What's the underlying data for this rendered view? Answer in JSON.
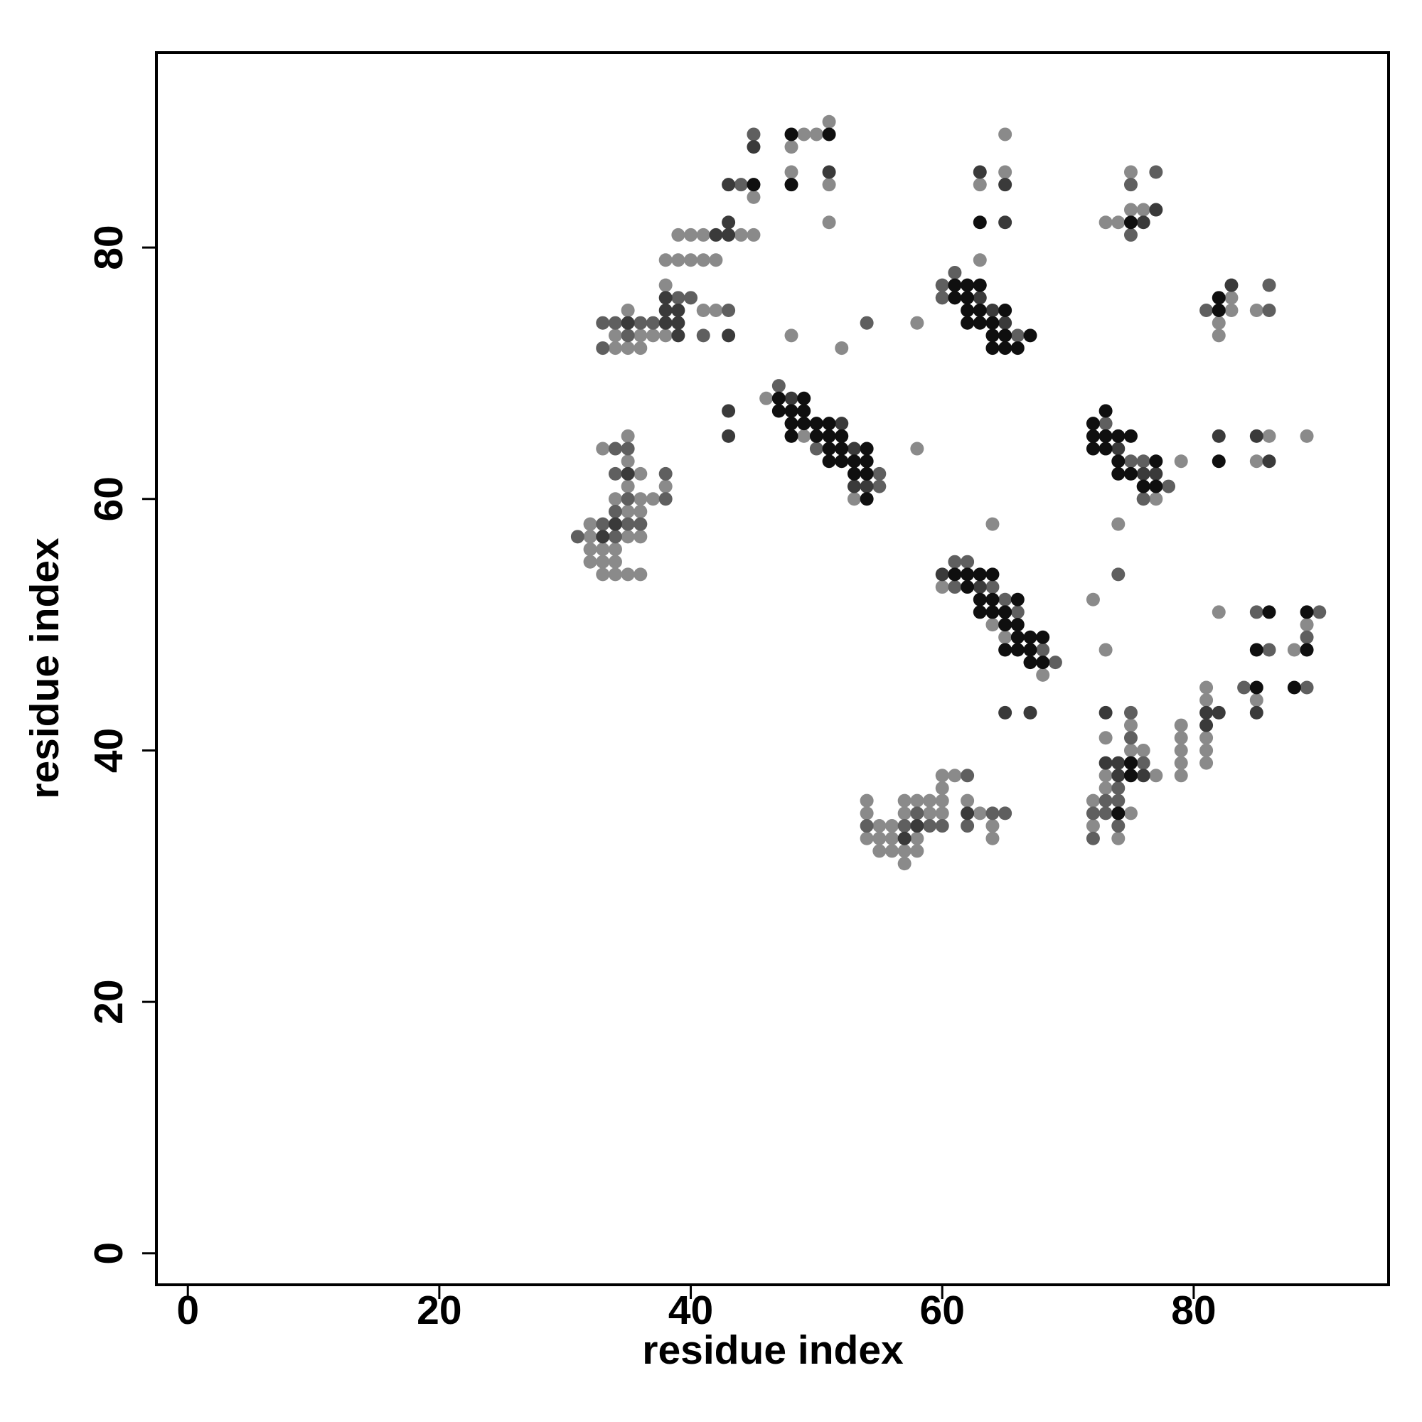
{
  "chart_data": {
    "type": "scatter",
    "x_label": "residue index",
    "y_label": "residue index",
    "xlim": [
      -2.5,
      95.5
    ],
    "ylim": [
      -2.5,
      95.5
    ],
    "xticks": [
      0,
      20,
      40,
      60,
      80
    ],
    "yticks": [
      0,
      20,
      40,
      60,
      80
    ],
    "grid": false,
    "series": [
      {
        "color": "#8a8a8a",
        "x": [
          35,
          33,
          35,
          36,
          35,
          34,
          36,
          35,
          36,
          32,
          32,
          35,
          36,
          32,
          33,
          34,
          32,
          33,
          34,
          33,
          34,
          35,
          36,
          37,
          38,
          35,
          41,
          42,
          34,
          36,
          37,
          38,
          34,
          35,
          36,
          38,
          38,
          39,
          40,
          41,
          42,
          39,
          40,
          41,
          44,
          45,
          45,
          49,
          50,
          51,
          48,
          48,
          51,
          51,
          48,
          52,
          58,
          58,
          46,
          49,
          53,
          63,
          65,
          65,
          63,
          60,
          64,
          65,
          68,
          64,
          54,
          54,
          54,
          55,
          55,
          55,
          56,
          56,
          56,
          57,
          57,
          57,
          57,
          58,
          58,
          58,
          59,
          59,
          60,
          60,
          60,
          60,
          61,
          62,
          63,
          64,
          64,
          72,
          72,
          73,
          73,
          73,
          74,
          75,
          75,
          75,
          76,
          77,
          79,
          79,
          79,
          79,
          79,
          81,
          81,
          81,
          81,
          81,
          85,
          88,
          89,
          82,
          72,
          73,
          74,
          77,
          79,
          85,
          86,
          89,
          82,
          82,
          83,
          83,
          85,
          75,
          75,
          76,
          73,
          74
        ],
        "values": [
          65,
          64,
          63,
          62,
          61,
          60,
          60,
          59,
          59,
          58,
          57,
          57,
          57,
          56,
          56,
          56,
          55,
          55,
          55,
          54,
          54,
          54,
          54,
          60,
          61,
          75,
          75,
          75,
          73,
          73,
          73,
          73,
          72,
          72,
          72,
          77,
          79,
          79,
          79,
          79,
          79,
          81,
          81,
          81,
          81,
          81,
          84,
          89,
          89,
          90,
          88,
          86,
          85,
          82,
          73,
          72,
          74,
          64,
          68,
          65,
          60,
          79,
          89,
          86,
          85,
          53,
          50,
          49,
          46,
          58,
          36,
          35,
          33,
          34,
          33,
          32,
          34,
          33,
          32,
          36,
          35,
          32,
          31,
          36,
          33,
          32,
          36,
          35,
          38,
          37,
          36,
          35,
          38,
          36,
          35,
          34,
          33,
          36,
          34,
          41,
          38,
          37,
          33,
          42,
          40,
          35,
          40,
          38,
          42,
          41,
          40,
          39,
          38,
          45,
          44,
          41,
          40,
          39,
          44,
          48,
          50,
          51,
          52,
          48,
          58,
          60,
          63,
          63,
          65,
          65,
          74,
          73,
          76,
          75,
          75,
          86,
          83,
          83,
          82,
          82
        ]
      },
      {
        "color": "#5f5f5f",
        "x": [
          34,
          35,
          34,
          35,
          34,
          33,
          35,
          36,
          31,
          34,
          38,
          38,
          43,
          33,
          34,
          36,
          37,
          35,
          41,
          33,
          39,
          40,
          44,
          45,
          54,
          47,
          50,
          55,
          55,
          60,
          60,
          61,
          66,
          61,
          61,
          62,
          64,
          65,
          66,
          68,
          69,
          74,
          54,
          57,
          58,
          59,
          60,
          62,
          62,
          64,
          65,
          72,
          72,
          73,
          73,
          74,
          74,
          74,
          75,
          75,
          76,
          84,
          85,
          86,
          89,
          89,
          90,
          73,
          75,
          76,
          76,
          78,
          81,
          86,
          86,
          77,
          75,
          75
        ],
        "values": [
          64,
          64,
          62,
          60,
          59,
          58,
          58,
          58,
          57,
          57,
          60,
          62,
          75,
          74,
          74,
          74,
          74,
          73,
          73,
          72,
          76,
          76,
          85,
          89,
          74,
          69,
          64,
          62,
          61,
          77,
          76,
          78,
          73,
          55,
          53,
          55,
          53,
          52,
          51,
          48,
          47,
          54,
          34,
          34,
          35,
          34,
          34,
          38,
          34,
          35,
          35,
          35,
          33,
          36,
          35,
          37,
          36,
          34,
          43,
          41,
          39,
          45,
          51,
          48,
          49,
          45,
          51,
          66,
          63,
          63,
          60,
          61,
          75,
          77,
          75,
          86,
          85,
          81
        ]
      },
      {
        "color": "#3a3a3a",
        "x": [
          38,
          39,
          35,
          38,
          39,
          39,
          43,
          38,
          42,
          43,
          43,
          43,
          45,
          51,
          43,
          43,
          48,
          52,
          53,
          53,
          54,
          63,
          64,
          65,
          63,
          65,
          65,
          63,
          65,
          67,
          57,
          58,
          62,
          73,
          73,
          74,
          74,
          76,
          81,
          81,
          82,
          85,
          74,
          76,
          77,
          82,
          85,
          86,
          83,
          77,
          76,
          34,
          33,
          35,
          60
        ],
        "values": [
          75,
          75,
          74,
          74,
          74,
          73,
          73,
          76,
          81,
          81,
          82,
          85,
          88,
          86,
          67,
          65,
          68,
          66,
          64,
          61,
          61,
          76,
          75,
          74,
          86,
          85,
          82,
          53,
          43,
          43,
          33,
          34,
          35,
          43,
          39,
          39,
          38,
          38,
          43,
          42,
          43,
          43,
          64,
          62,
          62,
          65,
          65,
          63,
          77,
          83,
          82,
          58,
          57,
          62,
          54
        ]
      },
      {
        "color": "#0f0f0f",
        "x": [
          45,
          48,
          51,
          48,
          47,
          47,
          48,
          48,
          48,
          49,
          49,
          49,
          50,
          50,
          51,
          51,
          51,
          51,
          52,
          52,
          52,
          53,
          53,
          54,
          54,
          54,
          54,
          61,
          61,
          62,
          62,
          62,
          62,
          63,
          63,
          63,
          64,
          64,
          64,
          65,
          65,
          65,
          66,
          67,
          63,
          61,
          62,
          62,
          63,
          63,
          63,
          64,
          64,
          64,
          65,
          65,
          65,
          66,
          66,
          66,
          66,
          67,
          67,
          67,
          68,
          68,
          74,
          75,
          75,
          85,
          85,
          86,
          88,
          89,
          89,
          72,
          72,
          72,
          73,
          73,
          73,
          74,
          74,
          74,
          75,
          75,
          76,
          77,
          77,
          82,
          82,
          82,
          75
        ],
        "values": [
          85,
          89,
          89,
          85,
          68,
          67,
          67,
          66,
          65,
          68,
          67,
          66,
          66,
          65,
          66,
          65,
          64,
          63,
          65,
          64,
          63,
          63,
          62,
          64,
          63,
          62,
          60,
          77,
          76,
          77,
          76,
          75,
          74,
          77,
          75,
          74,
          74,
          73,
          72,
          75,
          73,
          72,
          72,
          73,
          82,
          54,
          54,
          53,
          54,
          52,
          51,
          54,
          52,
          51,
          51,
          50,
          48,
          52,
          50,
          49,
          48,
          49,
          48,
          47,
          49,
          47,
          35,
          39,
          38,
          48,
          45,
          51,
          45,
          51,
          48,
          66,
          65,
          64,
          67,
          65,
          64,
          65,
          63,
          62,
          65,
          62,
          61,
          63,
          61,
          63,
          76,
          75,
          82
        ]
      }
    ]
  }
}
